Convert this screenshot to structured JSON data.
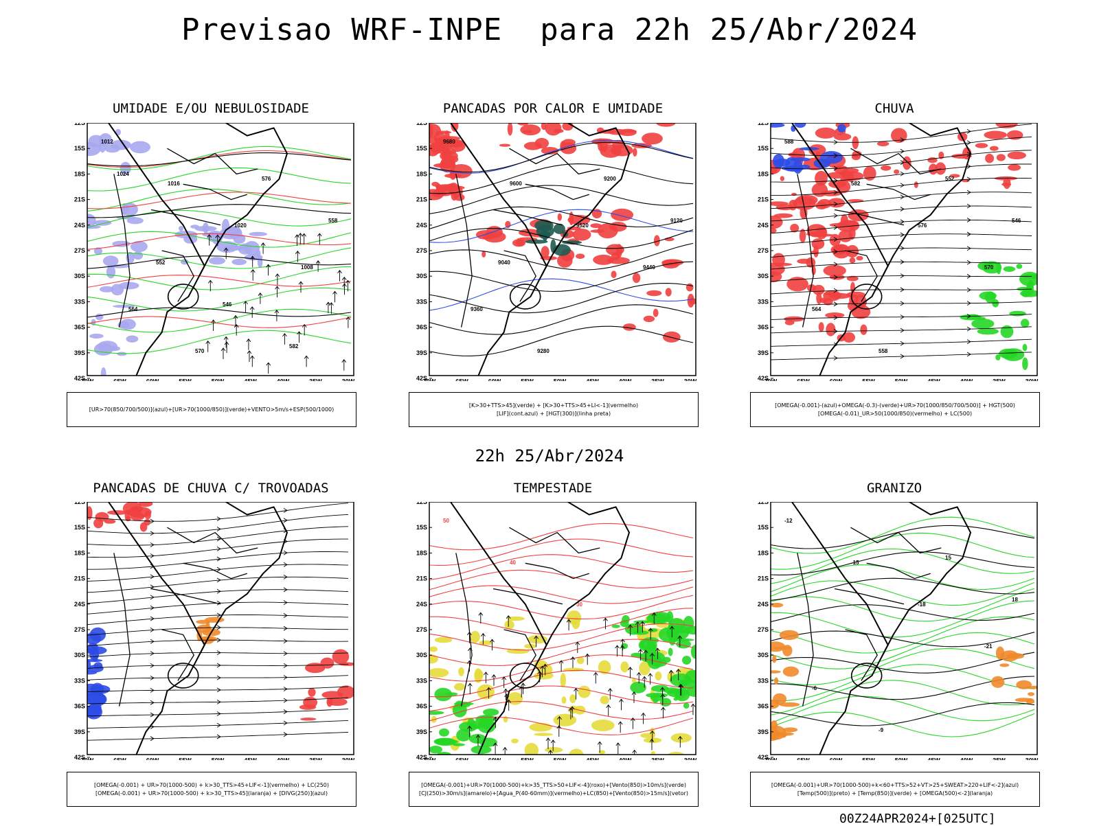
{
  "header": {
    "title": "Previsao WRF-INPE  para 22h 25/Abr/2024",
    "mid_title": "22h 25/Abr/2024",
    "footer_code": "00Z24APR2024+[025UTC]"
  },
  "colors": {
    "red": "#f04040",
    "green": "#26d626",
    "blue": "#2e4de6",
    "lavender": "#a9a9ef",
    "darkteal": "#1f5a50",
    "yellow": "#e6dc3c",
    "orange": "#ef8a2b",
    "black": "#000000"
  },
  "axes": {
    "lat_ticks": [
      "12S",
      "15S",
      "18S",
      "21S",
      "24S",
      "27S",
      "30S",
      "33S",
      "36S",
      "39S",
      "42S"
    ],
    "lon_ticks": [
      "70W",
      "65W",
      "60W",
      "55W",
      "50W",
      "45W",
      "40W",
      "35W",
      "30W"
    ]
  },
  "chart_data": [
    {
      "type": "map",
      "title": "UMIDADE E/OU NEBULOSIDADE",
      "legend": [
        "[UR>70(850/700/500)](azul)+[UR>70(1000/850)](verde)+VENTO>5m/s+ESP(500/1000)"
      ],
      "labels": [
        "1012",
        "1016",
        "1020",
        "1008",
        "564",
        "570",
        "576",
        "558",
        "552",
        "546",
        "582",
        "1024"
      ],
      "lat_range": [
        "12S",
        "42S"
      ],
      "lon_range": [
        "70W",
        "30W"
      ]
    },
    {
      "type": "map",
      "title": "PANCADAS POR CALOR E UMIDADE",
      "legend": [
        "[K>30+TTS>45](verde) + [K>30+TTS>45+LI<-1](vermelho)",
        "[LIF](cont.azul) + [HGT(300)](linha preta)"
      ],
      "labels": [
        "9680",
        "9600",
        "9520",
        "9440",
        "9360",
        "9280",
        "9200",
        "9120",
        "9040"
      ],
      "lat_range": [
        "12S",
        "42S"
      ],
      "lon_range": [
        "70W",
        "30W"
      ]
    },
    {
      "type": "map",
      "title": "CHUVA",
      "legend": [
        "[OMEGA(-0.001)-(azul)+OMEGA(-0.3)-(verde)+UR>70(1000/850/700/500)] + HGT(500)",
        "[OMEGA(-0.01)_UR>50(1000/850)(vermelho) + LC(500)"
      ],
      "labels": [
        "588",
        "582",
        "576",
        "570",
        "564",
        "558",
        "552",
        "546"
      ],
      "lat_range": [
        "12S",
        "42S"
      ],
      "lon_range": [
        "70W",
        "30W"
      ]
    },
    {
      "type": "map",
      "title": "PANCADAS DE CHUVA C/ TROVOADAS",
      "legend": [
        "[OMEGA(-0.001) + UR>70(1000-500) + k>30_TTS>45+LIF<-1](vermelho) + LC(250)",
        "[OMEGA(-0.001) + UR>70(1000-500) + k>30_TTS>45](laranja) + [DIVG(250)](azul)"
      ],
      "labels": [],
      "lat_range": [
        "12S",
        "42S"
      ],
      "lon_range": [
        "70W",
        "30W"
      ]
    },
    {
      "type": "map",
      "title": "TEMPESTADE",
      "legend": [
        "[OMEGA(-0.001)+UR>70(1000-500)+k>35_TTS>50+LIF<-4](roxo)+[Vento(850)>10m/s](verde)",
        "[CJ(250)>30m/s](amarelo)+[Agua_P(40-60mm)](vermelho)+LC(850)+[Vento(850)>15m/s](vetor)"
      ],
      "labels": [
        "50",
        "40",
        "30"
      ],
      "lat_range": [
        "12S",
        "42S"
      ],
      "lon_range": [
        "70W",
        "30W"
      ]
    },
    {
      "type": "map",
      "title": "GRANIZO",
      "legend": [
        "[OMEGA(-0.001)+UR>70(1000-500)+k<60+TTS>52+VT>25+SWEAT>220+LIF<-2](azul)",
        "[Temp(500)](preto) + [Temp(850)](verde) + [OMEGA(500)<-2](laranja)"
      ],
      "labels": [
        "-12",
        "-15",
        "-18",
        "-21",
        "-6",
        "-9",
        "15",
        "18"
      ],
      "lat_range": [
        "12S",
        "42S"
      ],
      "lon_range": [
        "70W",
        "30W"
      ]
    }
  ]
}
